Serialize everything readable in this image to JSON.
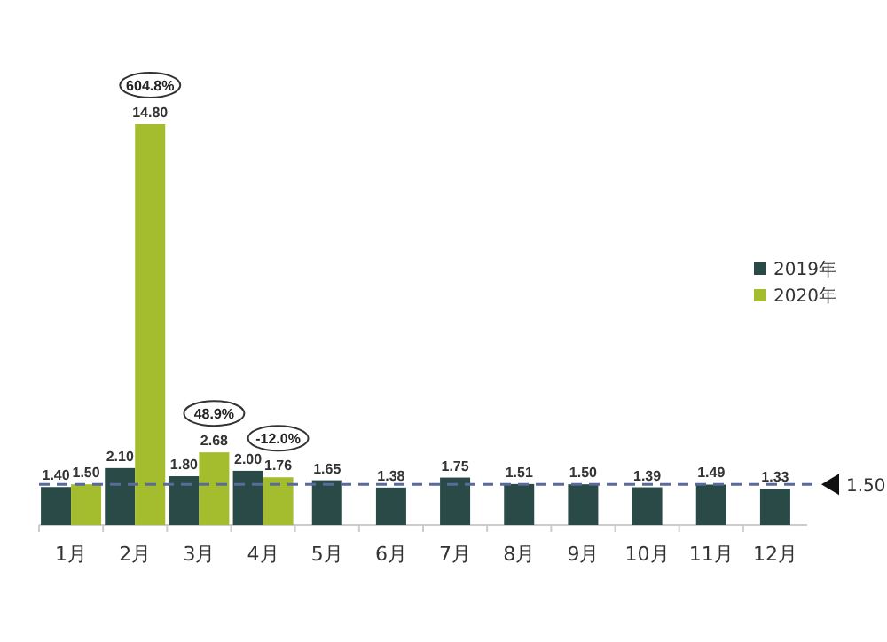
{
  "chart_data": {
    "type": "bar",
    "categories": [
      "1月",
      "2月",
      "3月",
      "4月",
      "5月",
      "6月",
      "7月",
      "8月",
      "9月",
      "10月",
      "11月",
      "12月"
    ],
    "series": [
      {
        "name": "2019年",
        "color": "#2a4a47",
        "values": [
          1.4,
          2.1,
          1.8,
          2.0,
          1.65,
          1.38,
          1.75,
          1.51,
          1.5,
          1.39,
          1.49,
          1.33
        ],
        "value_labels": [
          "1.40",
          "2.10",
          "1.80",
          "2.00",
          "1.65",
          "1.38",
          "1.75",
          "1.51",
          "1.50",
          "1.39",
          "1.49",
          "1.33"
        ]
      },
      {
        "name": "2020年",
        "color": "#a4bd2e",
        "values": [
          1.5,
          14.8,
          2.68,
          1.76,
          null,
          null,
          null,
          null,
          null,
          null,
          null,
          null
        ],
        "value_labels": [
          "1.50",
          "14.80",
          "2.68",
          "1.76",
          null,
          null,
          null,
          null,
          null,
          null,
          null,
          null
        ]
      }
    ],
    "legend": "top right",
    "ref_lines": [
      {
        "axis": "y",
        "value": 1.5,
        "label": "1.50",
        "color": "#5a6a9a",
        "line_style": "dashed"
      }
    ],
    "annotations": [
      {
        "text": "604.8%",
        "x": "2月",
        "y": 14.8
      },
      {
        "text": "48.9%",
        "x": "3月",
        "y": 2.68
      },
      {
        "text": "-12.0%",
        "x": "4月",
        "y": 1.76
      }
    ]
  }
}
